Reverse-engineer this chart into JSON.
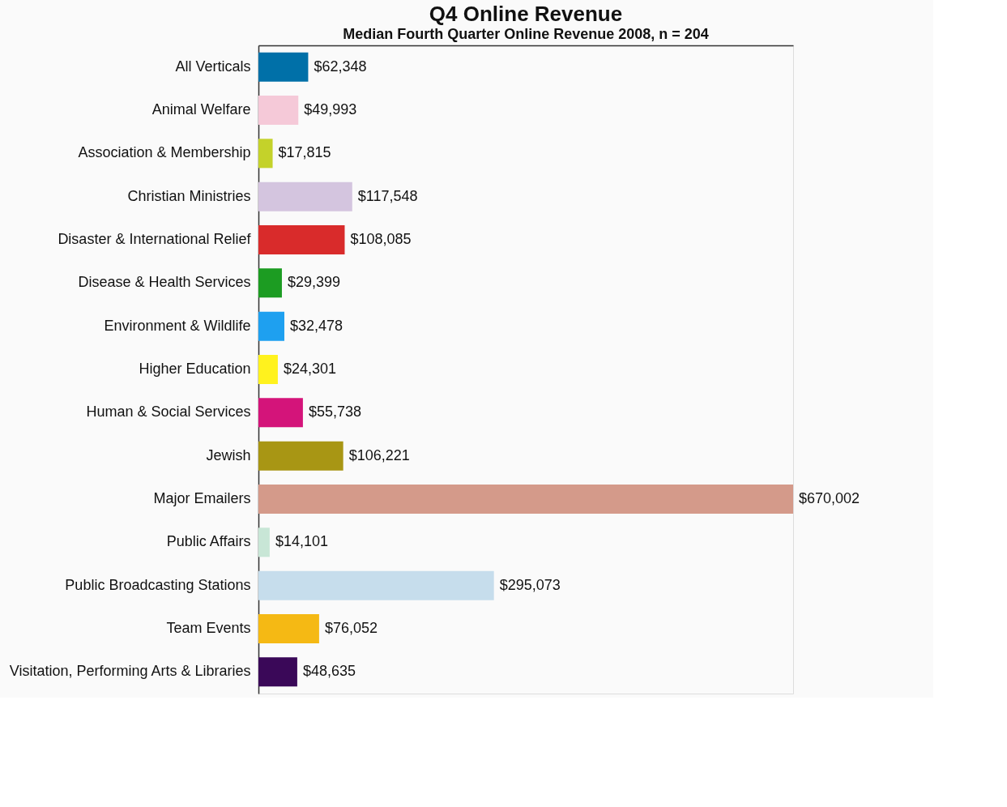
{
  "chart_data": {
    "type": "bar",
    "orientation": "horizontal",
    "title": "Q4 Online Revenue",
    "subtitle": "Median Fourth Quarter Online Revenue 2008, n = 204",
    "categories": [
      "All Verticals",
      "Animal Welfare",
      "Association & Membership",
      "Christian Ministries",
      "Disaster & International Relief",
      "Disease & Health Services",
      "Environment & Wildlife",
      "Higher Education",
      "Human & Social Services",
      "Jewish",
      "Major Emailers",
      "Public Affairs",
      "Public Broadcasting Stations",
      "Team Events",
      "Visitation, Performing Arts & Libraries"
    ],
    "values": [
      62348,
      49993,
      17815,
      117548,
      108085,
      29399,
      32478,
      24301,
      55738,
      106221,
      670002,
      14101,
      295073,
      76052,
      48635
    ],
    "value_labels": [
      "$62,348",
      "$49,993",
      "$17,815",
      "$117,548",
      "$108,085",
      "$29,399",
      "$32,478",
      "$24,301",
      "$55,738",
      "$106,221",
      "$670,002",
      "$14,101",
      "$295,073",
      "$76,052",
      "$48,635"
    ],
    "colors": [
      "#0070a8",
      "#f5c9d8",
      "#c4d22a",
      "#d4c5df",
      "#d92b2b",
      "#1c9c22",
      "#1ea0f0",
      "#fff21e",
      "#d4147a",
      "#a89614",
      "#d49a8a",
      "#c8e6d6",
      "#c6ddec",
      "#f5b914",
      "#3a0858"
    ],
    "grid": false
  }
}
